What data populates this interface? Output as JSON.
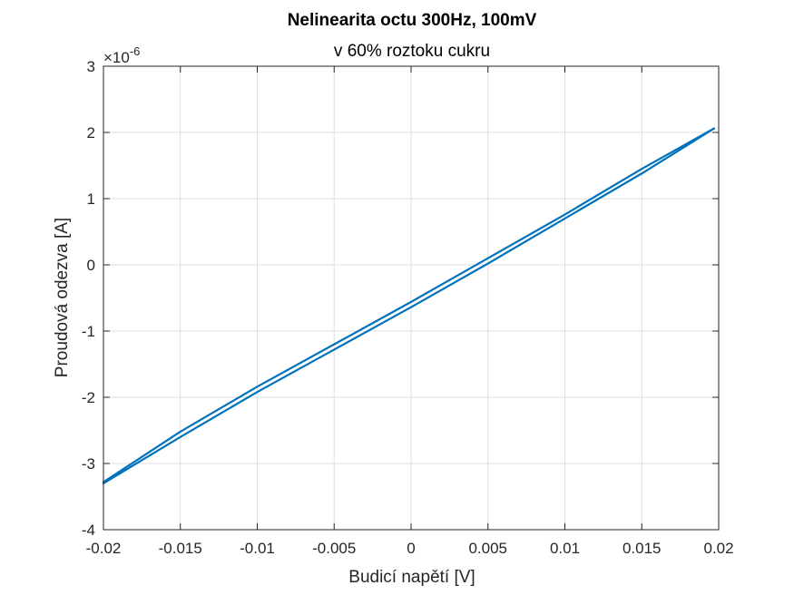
{
  "chart_data": {
    "type": "line",
    "title": "Nelinearita octu 300Hz, 100mV",
    "subtitle": "v 60% roztoku cukru",
    "xlabel": "Budicí napětí [V]",
    "ylabel": "Proudová odezva [A]",
    "y_multiplier": "×10",
    "y_exponent": "-6",
    "xlim": [
      -0.02,
      0.02
    ],
    "ylim": [
      -4,
      3
    ],
    "grid": true,
    "x_ticks": [
      -0.02,
      -0.015,
      -0.01,
      -0.005,
      0,
      0.005,
      0.01,
      0.015,
      0.02
    ],
    "x_tick_labels": [
      "-0.02",
      "-0.015",
      "-0.01",
      "-0.005",
      "0",
      "0.005",
      "0.01",
      "0.015",
      "0.02"
    ],
    "y_ticks": [
      3,
      2,
      1,
      0,
      -1,
      -2,
      -3,
      -4
    ],
    "y_tick_labels": [
      "3",
      "2",
      "1",
      "0",
      "-1",
      "-2",
      "-3",
      "-4"
    ],
    "series": [
      {
        "color": "#0072BD",
        "branches": [
          {
            "x": [
              -0.02,
              -0.015,
              -0.01,
              -0.005,
              0,
              0.005,
              0.01,
              0.015,
              0.0197
            ],
            "y": [
              -3.28,
              -2.52,
              -1.84,
              -1.2,
              -0.56,
              0.1,
              0.76,
              1.45,
              2.06
            ]
          },
          {
            "x": [
              0.0197,
              0.015,
              0.01,
              0.005,
              0,
              -0.005,
              -0.01,
              -0.015,
              -0.02
            ],
            "y": [
              2.06,
              1.38,
              0.7,
              0.02,
              -0.64,
              -1.28,
              -1.92,
              -2.6,
              -3.3
            ]
          }
        ]
      }
    ]
  }
}
